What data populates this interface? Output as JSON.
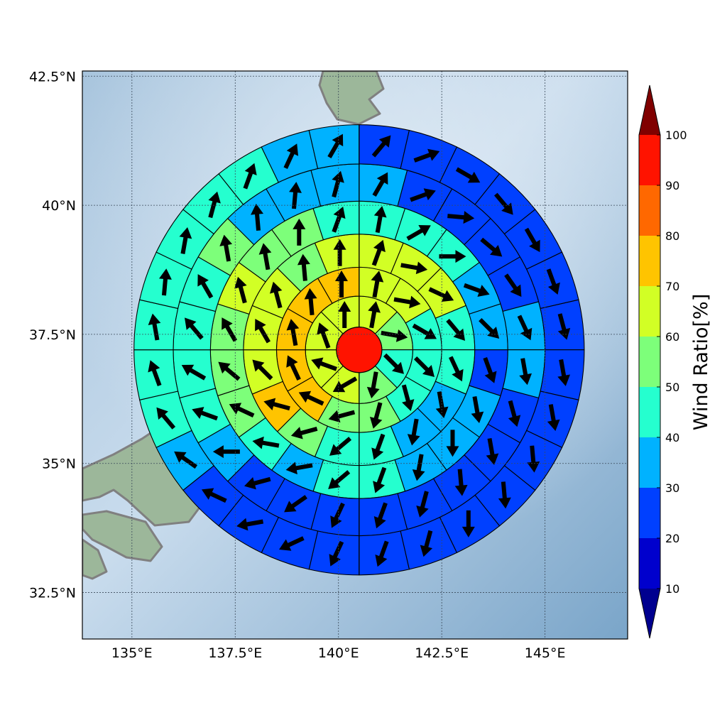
{
  "chart_data": {
    "type": "heatmap",
    "projection": "polar wind-ratio sectors over map",
    "background_map": true,
    "grid": true,
    "lon_range": [
      133.8,
      147.0
    ],
    "lat_range": [
      31.6,
      42.6
    ],
    "center": {
      "lon": 140.5,
      "lat": 37.2
    },
    "x_ticks": [
      {
        "value": 135.0,
        "label": "135°E"
      },
      {
        "value": 137.5,
        "label": "137.5°E"
      },
      {
        "value": 140.0,
        "label": "140°E"
      },
      {
        "value": 142.5,
        "label": "142.5°E"
      },
      {
        "value": 145.0,
        "label": "145°E"
      }
    ],
    "y_ticks": [
      {
        "value": 42.5,
        "label": "42.5°N"
      },
      {
        "value": 40.0,
        "label": "40°N"
      },
      {
        "value": 37.5,
        "label": "37.5°N"
      },
      {
        "value": 35.0,
        "label": "35°N"
      },
      {
        "value": 32.5,
        "label": "32.5°N"
      }
    ],
    "center_value": 95,
    "rings": [
      {
        "r_inner": 0.55,
        "r_outer": 1.3,
        "sectors": 8,
        "values": [
          65,
          55,
          45,
          55,
          65,
          65,
          65,
          65
        ],
        "wind_dir": [
          10,
          100,
          135,
          190,
          240,
          290,
          340,
          0
        ]
      },
      {
        "r_inner": 1.3,
        "r_outer": 2.0,
        "sectors": 12,
        "values": [
          65,
          65,
          45,
          45,
          45,
          55,
          55,
          75,
          75,
          75,
          75,
          75
        ],
        "wind_dir": [
          10,
          100,
          120,
          135,
          165,
          195,
          255,
          295,
          335,
          350,
          355,
          0
        ]
      },
      {
        "r_inner": 2.0,
        "r_outer": 2.8,
        "sectors": 16,
        "values": [
          65,
          65,
          65,
          45,
          45,
          35,
          35,
          45,
          45,
          55,
          75,
          65,
          65,
          65,
          55,
          65
        ],
        "wind_dir": [
          20,
          100,
          115,
          140,
          155,
          170,
          190,
          200,
          230,
          255,
          285,
          315,
          330,
          345,
          355,
          0
        ]
      },
      {
        "r_inner": 2.8,
        "r_outer": 3.6,
        "sectors": 20,
        "values": [
          45,
          45,
          45,
          35,
          35,
          25,
          35,
          35,
          35,
          45,
          45,
          35,
          45,
          55,
          55,
          55,
          65,
          55,
          55,
          45
        ],
        "wind_dir": [
          10,
          60,
          90,
          110,
          135,
          160,
          170,
          180,
          190,
          200,
          230,
          260,
          280,
          295,
          310,
          330,
          345,
          350,
          0,
          20
        ]
      },
      {
        "r_inner": 3.6,
        "r_outer": 4.5,
        "sectors": 24,
        "values": [
          35,
          25,
          25,
          25,
          25,
          35,
          35,
          25,
          25,
          25,
          25,
          25,
          25,
          25,
          25,
          35,
          45,
          45,
          45,
          45,
          55,
          35,
          35,
          35
        ],
        "wind_dir": [
          30,
          70,
          95,
          130,
          145,
          155,
          170,
          165,
          170,
          175,
          195,
          200,
          205,
          235,
          255,
          270,
          290,
          300,
          320,
          330,
          350,
          355,
          5,
          15
        ]
      },
      {
        "r_inner": 4.5,
        "r_outer": 5.45,
        "sectors": 28,
        "values": [
          25,
          25,
          25,
          25,
          25,
          25,
          25,
          25,
          25,
          25,
          25,
          25,
          25,
          25,
          25,
          25,
          25,
          25,
          35,
          45,
          45,
          45,
          45,
          45,
          45,
          45,
          35,
          35
        ],
        "wind_dir": [
          40,
          70,
          120,
          140,
          150,
          160,
          165,
          170,
          170,
          175,
          175,
          180,
          195,
          200,
          205,
          245,
          260,
          295,
          305,
          320,
          340,
          350,
          5,
          10,
          15,
          20,
          25,
          30
        ]
      }
    ],
    "colorbar": {
      "title": "Wind Ratio[%]",
      "levels": [
        10,
        20,
        30,
        40,
        50,
        60,
        70,
        80,
        90,
        100
      ],
      "tick_labels": [
        "10",
        "20",
        "30",
        "40",
        "50",
        "60",
        "70",
        "80",
        "90",
        "100"
      ],
      "colors": [
        "#0000cd",
        "#0040ff",
        "#00b2ff",
        "#25ffcf",
        "#7dff7a",
        "#d2ff25",
        "#ffc400",
        "#ff6800",
        "#ff1300",
        "#800000"
      ],
      "under_color": "#00008f",
      "over_color": "#800000",
      "extend": "both"
    },
    "coast_color": "#808080",
    "arrow_color": "#000000"
  }
}
